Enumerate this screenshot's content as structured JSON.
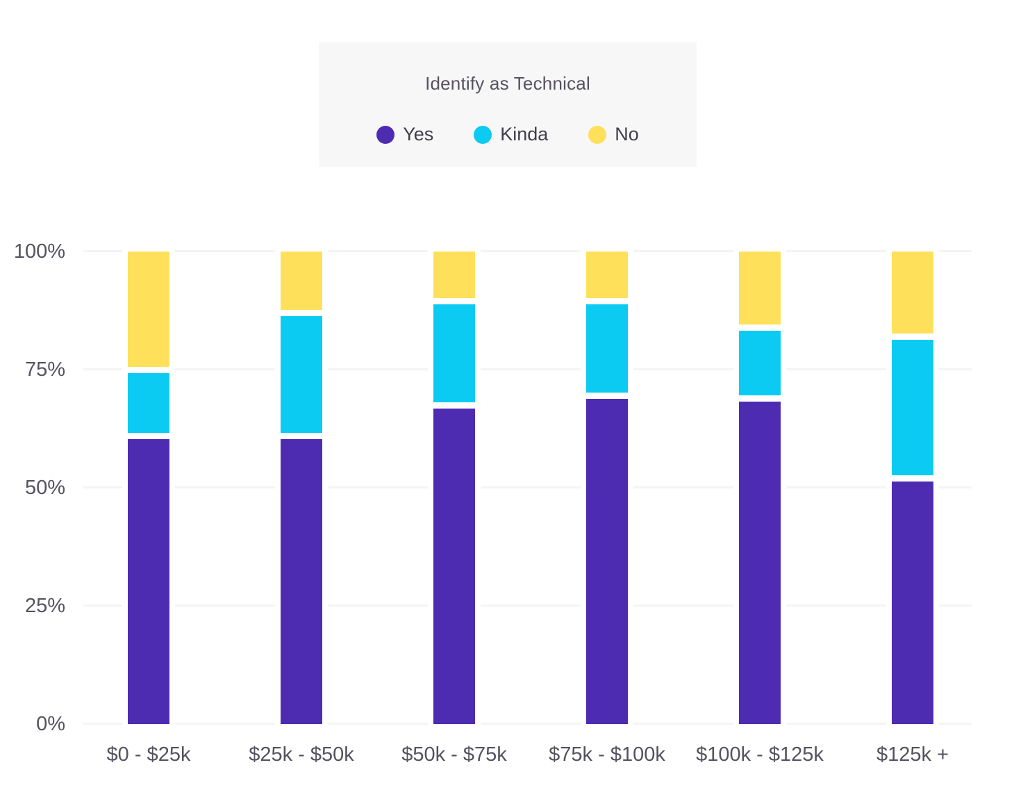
{
  "legend": {
    "title": "Identify as Technical",
    "items": [
      {
        "label": "Yes",
        "color": "#4d2cb2"
      },
      {
        "label": "Kinda",
        "color": "#0bcbf2"
      },
      {
        "label": "No",
        "color": "#ffe05b"
      }
    ]
  },
  "chart_data": {
    "type": "bar",
    "stacked": true,
    "orientation": "vertical",
    "title": "Identify as Technical",
    "categories": [
      "$0 - $25k",
      "$25k - $50k",
      "$50k - $75k",
      "$75k - $100k",
      "$100k - $125k",
      "$125k +"
    ],
    "series": [
      {
        "name": "Yes",
        "color": "#4d2cb2",
        "values": [
          61,
          61,
          67.5,
          69.5,
          69,
          52
        ]
      },
      {
        "name": "Kinda",
        "color": "#0bcbf2",
        "values": [
          14,
          26,
          22,
          20,
          15,
          30
        ]
      },
      {
        "name": "No",
        "color": "#ffe05b",
        "values": [
          25,
          13,
          10.5,
          10.5,
          16,
          18
        ]
      }
    ],
    "unit": "%",
    "ylim": [
      0,
      100
    ],
    "yticks": [
      {
        "label": "100%",
        "value": 100
      },
      {
        "label": "75%",
        "value": 75
      },
      {
        "label": "50%",
        "value": 50
      },
      {
        "label": "25%",
        "value": 25
      },
      {
        "label": "0%",
        "value": 0
      }
    ],
    "grid": "horizontal",
    "legend_position": "top-center"
  },
  "colors": {
    "background": "#ffffff",
    "gridline": "#f4f4f6",
    "tick_text": "#55525e",
    "legend_background": "#f7f7f8",
    "legend_title_text": "#56525e",
    "legend_label_text": "#413e4b",
    "series_yes": "#4d2cb2",
    "series_kinda": "#0bcbf2",
    "series_no": "#ffe05b"
  }
}
